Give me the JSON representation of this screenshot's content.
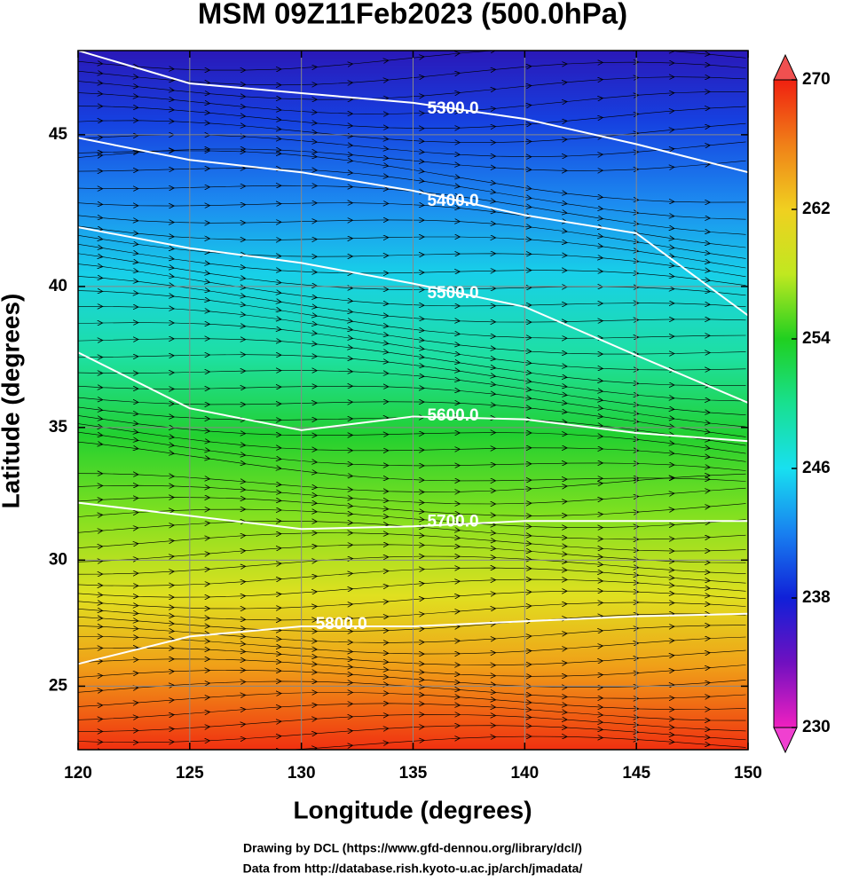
{
  "chart_data": {
    "type": "map",
    "title": "MSM 09Z11Feb2023 (500.0hPa)",
    "x_label": "Longitude (degrees)",
    "y_label": "Latitude  (degrees)",
    "projection": "mercator",
    "xlim": [
      120,
      150
    ],
    "ylim": [
      22.4,
      47.6
    ],
    "xticks": [
      120,
      125,
      130,
      135,
      140,
      145,
      150
    ],
    "yticks": [
      25,
      30,
      35,
      40,
      45
    ],
    "grid": true,
    "colorbar": {
      "lim": [
        230,
        270
      ],
      "ticks": [
        230,
        238,
        246,
        254,
        262,
        270
      ]
    },
    "contour_color": "#ffffff",
    "x": [
      120,
      125,
      130,
      135,
      140,
      145,
      150
    ],
    "contours": [
      {
        "level": {
          "value": 5300,
          "label": "5300.0"
        },
        "lat": [
          47.6,
          46.6,
          46.3,
          46.0,
          45.5,
          44.7,
          43.8
        ]
      },
      {
        "level": {
          "value": 5400,
          "label": "5400.0"
        },
        "lat": [
          44.9,
          44.2,
          43.8,
          43.2,
          42.4,
          41.8,
          39.0
        ]
      },
      {
        "level": {
          "value": 5500,
          "label": "5500.0"
        },
        "lat": [
          42.0,
          41.3,
          40.8,
          40.1,
          39.3,
          37.6,
          35.9
        ]
      },
      {
        "level": {
          "value": 5600,
          "label": "5600.0"
        },
        "lat": [
          37.7,
          35.7,
          34.9,
          35.4,
          35.3,
          34.8,
          34.5
        ]
      },
      {
        "level": {
          "value": 5700,
          "label": "5700.0"
        },
        "lat": [
          32.2,
          31.7,
          31.2,
          31.3,
          31.5,
          31.5,
          31.5
        ]
      },
      {
        "level": {
          "value": 5800,
          "label": "5800.0"
        },
        "lat": [
          25.9,
          27.0,
          27.4,
          27.4,
          27.6,
          27.8,
          27.9
        ]
      }
    ],
    "footer": [
      "Drawing by DCL (https://www.gfd-dennou.org/library/dcl/)",
      "Data from http://database.rish.kyoto-u.ac.jp/arch/jmadata/"
    ]
  }
}
